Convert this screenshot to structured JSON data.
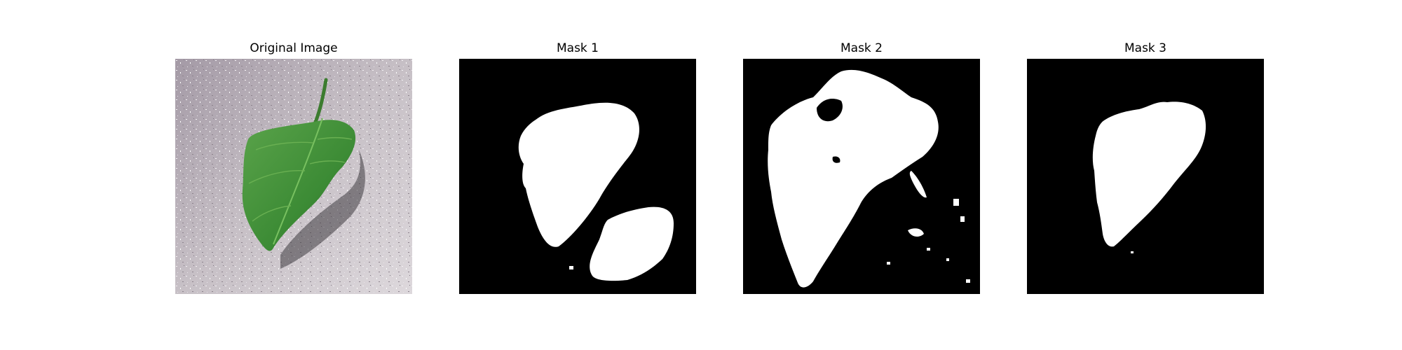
{
  "figure": {
    "panels": [
      {
        "title": "Original Image",
        "content": "photo of a green leaf on a grey speckled surface"
      },
      {
        "title": "Mask 1",
        "content": "binary segmentation mask"
      },
      {
        "title": "Mask 2",
        "content": "binary segmentation mask"
      },
      {
        "title": "Mask 3",
        "content": "binary segmentation mask"
      }
    ]
  },
  "colors": {
    "background": "#ffffff",
    "mask_foreground": "#ffffff",
    "mask_background": "#000000",
    "leaf": "#3f8a35",
    "surface": "#b9b0b8"
  }
}
